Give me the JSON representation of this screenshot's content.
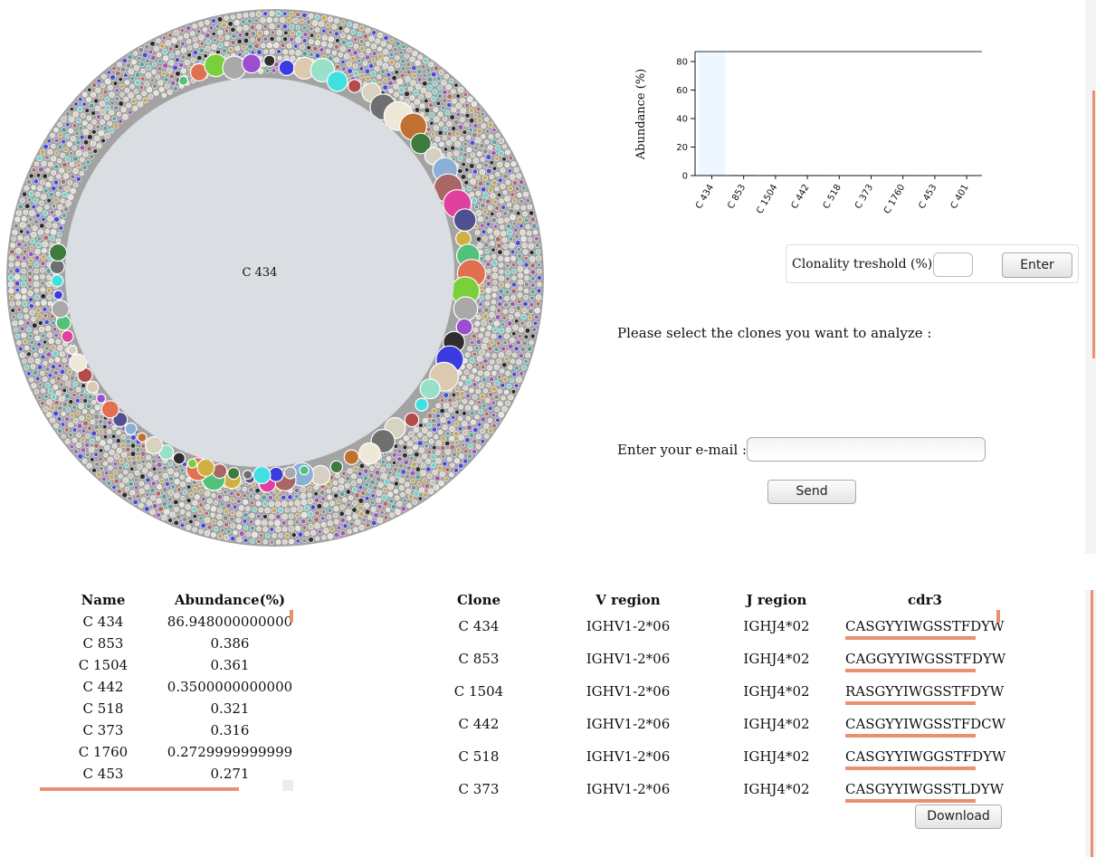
{
  "bubble_chart": {
    "center_label": "C 434"
  },
  "chart_data": {
    "type": "bar",
    "categories": [
      "C 434",
      "C 853",
      "C 1504",
      "C 442",
      "C 518",
      "C 373",
      "C 1760",
      "C 453",
      "C 401"
    ],
    "values": [
      86.948,
      0.386,
      0.361,
      0.35,
      0.321,
      0.316,
      0.273,
      0.271,
      0.27
    ],
    "ylabel": "Abundance (%)",
    "ylim": [
      0,
      87
    ],
    "yticks": [
      0,
      20,
      40,
      60,
      80
    ],
    "colors": {
      "bar": "#eef6ff",
      "bar_small": "#6fa7a0",
      "axis": "#111111"
    }
  },
  "threshold": {
    "label": "Clonality treshold (%) :",
    "value": "",
    "button": "Enter"
  },
  "select_text": "Please select the clones you want to analyze :",
  "email": {
    "label": "Enter your e-mail :",
    "value": "",
    "button": "Send"
  },
  "abundance_table": {
    "headers": [
      "Name",
      "Abundance(%)"
    ],
    "rows": [
      [
        "C 434",
        "86.948000000000"
      ],
      [
        "C 853",
        "0.386"
      ],
      [
        "C 1504",
        "0.361"
      ],
      [
        "C 442",
        "0.3500000000000"
      ],
      [
        "C 518",
        "0.321"
      ],
      [
        "C 373",
        "0.316"
      ],
      [
        "C 1760",
        "0.2729999999999"
      ],
      [
        "C 453",
        "0.271"
      ]
    ]
  },
  "clone_table": {
    "headers": [
      "Clone",
      "V region",
      "J region",
      "cdr3"
    ],
    "rows": [
      [
        "C 434",
        "IGHV1-2*06",
        "IGHJ4*02",
        "CASGYYIWGSSTFDYW"
      ],
      [
        "C 853",
        "IGHV1-2*06",
        "IGHJ4*02",
        "CAGGYYIWGSSTFDYW"
      ],
      [
        "C 1504",
        "IGHV1-2*06",
        "IGHJ4*02",
        "RASGYYIWGSSTFDYW"
      ],
      [
        "C 442",
        "IGHV1-2*06",
        "IGHJ4*02",
        "CASGYYIWGSSTFDCW"
      ],
      [
        "C 518",
        "IGHV1-2*06",
        "IGHJ4*02",
        "CASGYYIWGGSTFDYW"
      ],
      [
        "C 373",
        "IGHV1-2*06",
        "IGHJ4*02",
        "CASGYYIWGSSTLDYW"
      ]
    ]
  },
  "download_button": "Download"
}
